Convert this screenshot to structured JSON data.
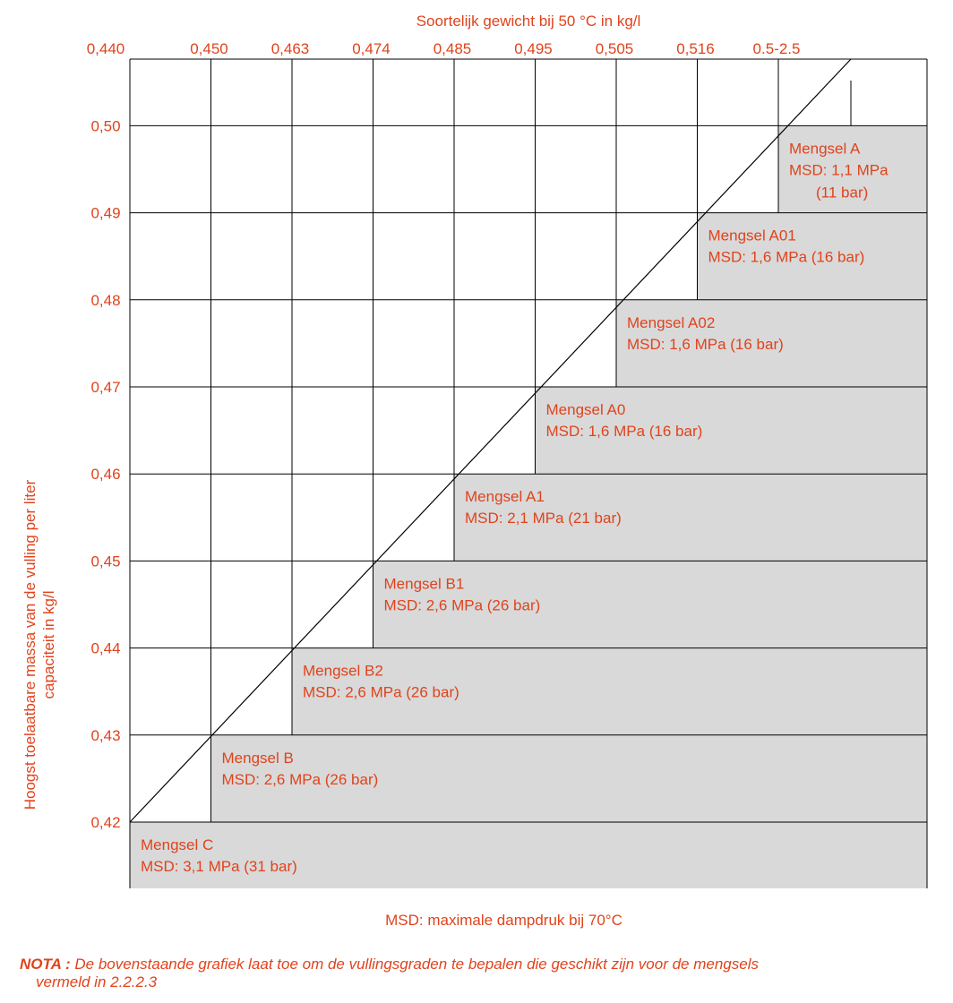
{
  "chart_data": {
    "type": "area",
    "top_axis": {
      "label": "Soortelijk gewicht bij 50 °C in kg/l",
      "ticks": [
        "0,440",
        "0,450",
        "0,463",
        "0,474",
        "0,485",
        "0,495",
        "0,505",
        "0,516",
        "0.5-2.5"
      ]
    },
    "y_axis": {
      "label_line1": "Hoogst toelaatbare massa van de vulling per liter",
      "label_line2": "capaciteit in kg/l",
      "ticks": [
        "0,42",
        "0,43",
        "0,44",
        "0,45",
        "0,46",
        "0,47",
        "0,48",
        "0,49",
        "0,50"
      ],
      "ylim": [
        0.42,
        0.5
      ]
    },
    "regions": [
      {
        "name": "Mengsel C",
        "msd": "MSD: 3,1 MPa (31 bar)",
        "density_from": "0,440",
        "max_fill": 0.42
      },
      {
        "name": "Mengsel B",
        "msd": "MSD: 2,6 MPa (26 bar)",
        "density_from": "0,450",
        "max_fill": 0.43
      },
      {
        "name": "Mengsel B2",
        "msd": "MSD: 2,6 MPa (26 bar)",
        "density_from": "0,463",
        "max_fill": 0.44
      },
      {
        "name": "Mengsel B1",
        "msd": "MSD: 2,6 MPa (26 bar)",
        "density_from": "0,474",
        "max_fill": 0.45
      },
      {
        "name": "Mengsel A1",
        "msd": "MSD: 2,1 MPa (21 bar)",
        "density_from": "0,485",
        "max_fill": 0.46
      },
      {
        "name": "Mengsel A0",
        "msd": "MSD: 1,6 MPa (16 bar)",
        "density_from": "0,495",
        "max_fill": 0.47
      },
      {
        "name": "Mengsel A02",
        "msd": "MSD: 1,6 MPa (16 bar)",
        "density_from": "0,505",
        "max_fill": 0.48
      },
      {
        "name": "Mengsel A01",
        "msd": "MSD: 1,6 MPa (16 bar)",
        "density_from": "0,516",
        "max_fill": 0.49
      },
      {
        "name": "Mengsel A",
        "msd": "MSD: 1,1 MPa",
        "msd_extra": "(11 bar)",
        "density_from": "0.5-2.5",
        "max_fill": 0.5
      }
    ],
    "grid": true
  },
  "footnote": "MSD: maximale dampdruk bij 70°C",
  "nota": {
    "label": "NOTA :",
    "text_line1": "De bovenstaande grafiek laat toe om de vullingsgraden te bepalen die geschikt zijn voor de mengsels",
    "text_line2": "vermeld in 2.2.2.3"
  },
  "colors": {
    "accent": "#e0431c",
    "region_fill": "#d9d9d9",
    "line": "#000000"
  }
}
